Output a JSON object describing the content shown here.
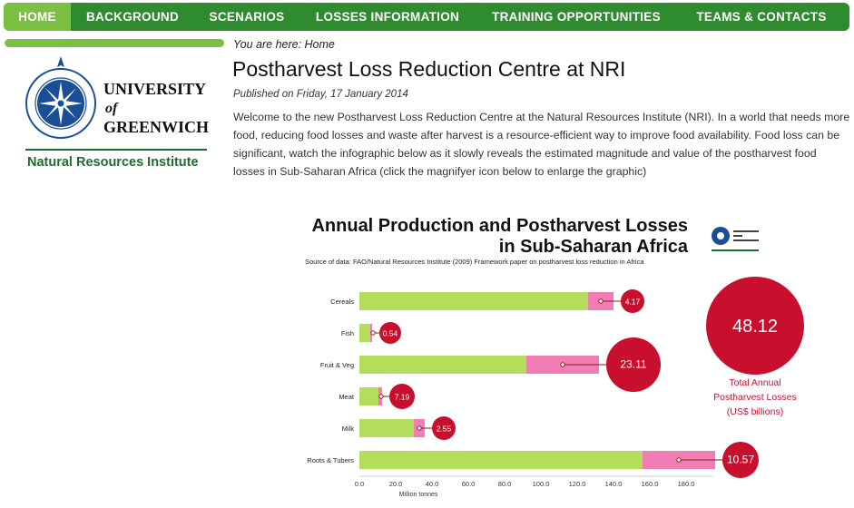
{
  "nav": {
    "items": [
      "HOME",
      "BACKGROUND",
      "SCENARIOS",
      "LOSSES INFORMATION",
      "TRAINING OPPORTUNITIES",
      "TEAMS & CONTACTS"
    ]
  },
  "logo": {
    "line1": "UNIVERSITY",
    "line2": "of",
    "line3": "GREENWICH",
    "institute": "Natural Resources Institute"
  },
  "breadcrumb": "You are here: Home",
  "article": {
    "title": "Postharvest Loss Reduction Centre at NRI",
    "published": "Published on Friday, 17 January 2014",
    "intro": "Welcome to the new Postharvest Loss Reduction Centre at the Natural Resources Institute (NRI).  In a world that needs more food, reducing food losses and waste after harvest is a resource-efficient way to improve food availability. Food loss can be significant, watch the infographic below as it slowly reveals the estimated magnitude and value of the postharvest food losses in Sub-Saharan Africa (click the magnifyer icon below to enlarge the graphic)"
  },
  "colors": {
    "nav_bg": "#2e8b2e",
    "nav_active": "#7bc043",
    "production_bar": "#b5dd5c",
    "loss_bar": "#f27db4",
    "loss_circle": "#c8102e",
    "total_circle": "#c8102e",
    "total_text": "#c8102e"
  },
  "chart_data": {
    "type": "bar",
    "title_line1": "Annual Production and Postharvest Losses",
    "title_line2": "in Sub-Saharan Africa",
    "source": "Source of data: FAO/Natural Resources Institute (2009) Framework paper on postharvest loss reduction in Africa",
    "xlabel": "Million tonnes",
    "xlim": [
      0,
      195
    ],
    "xticks": [
      "0.0",
      "20.0",
      "40.0",
      "60.0",
      "80.0",
      "100.0",
      "120.0",
      "140.0",
      "160.0",
      "180.0"
    ],
    "categories": [
      "Cereals",
      "Fish",
      "Fruit & Veg",
      "Meat",
      "Milk",
      "Roots & Tubers"
    ],
    "production": [
      126,
      6,
      92,
      10.5,
      30,
      156
    ],
    "losses": [
      14,
      1,
      40,
      2,
      6,
      40
    ],
    "loss_values_usd_bn": [
      "4.17",
      "0.54",
      "23.11",
      "7.19",
      "2.55",
      "10.57"
    ],
    "total_value": "48.12",
    "total_label": [
      "Total Annual",
      "Postharvest Losses",
      "(US$ billions)"
    ]
  }
}
